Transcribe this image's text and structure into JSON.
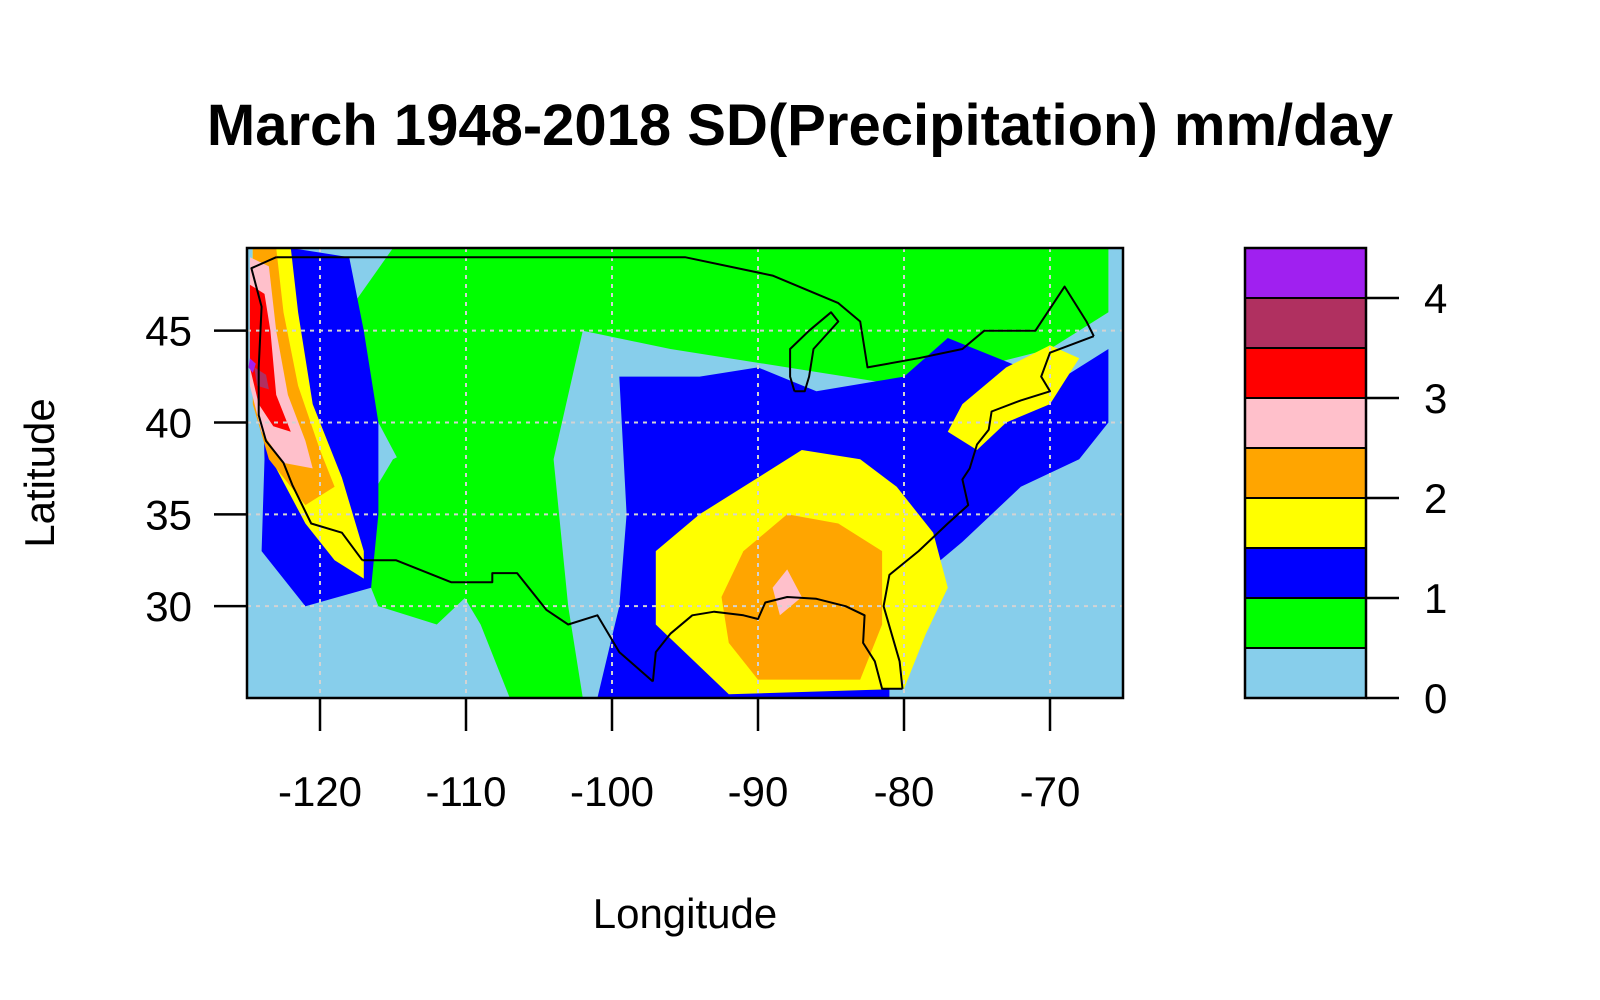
{
  "title": "March 1948-2018 SD(Precipitation) mm/day",
  "map": {
    "xlabel": "Longitude",
    "ylabel": "Latitude",
    "xlim": [
      -125,
      -65
    ],
    "ylim": [
      25,
      49.5
    ],
    "x_ticks": [
      -120,
      -110,
      -100,
      -90,
      -80,
      -70
    ],
    "y_ticks": [
      30,
      35,
      40,
      45
    ],
    "x_tick_labels": [
      "-120",
      "-110",
      "-100",
      "-90",
      "-80",
      "-70"
    ],
    "y_tick_labels": [
      "30",
      "35",
      "40",
      "45"
    ],
    "grid": true,
    "grid_color": "#d3d3d3",
    "background_color": "#87ceeb"
  },
  "legend": {
    "placement": "right",
    "breaks": [
      0,
      0.5,
      1,
      1.5,
      2,
      2.5,
      3,
      3.5,
      4,
      4.5
    ],
    "colors": [
      "#87ceeb",
      "#00ff00",
      "#0000ff",
      "#ffff00",
      "#ffa500",
      "#ffc0cb",
      "#ff0000",
      "#b03060",
      "#a020f0",
      "#000000"
    ],
    "ticks": [
      0,
      1,
      2,
      3,
      4
    ],
    "tick_labels": [
      "0",
      "1",
      "2",
      "3",
      "4"
    ]
  },
  "chart_data": {
    "type": "heatmap",
    "title": "March 1948-2018 SD(Precipitation) mm/day",
    "xlabel": "Longitude",
    "ylabel": "Latitude",
    "xlim": [
      -125,
      -65
    ],
    "ylim": [
      25,
      49.5
    ],
    "value_range": [
      0,
      4.5
    ],
    "legend_breaks": [
      0,
      0.5,
      1,
      1.5,
      2,
      2.5,
      3,
      3.5,
      4,
      4.5
    ],
    "regions": [
      {
        "name": "",
        "level": 0.5,
        "polygon": [
          [
            -102,
            49.5
          ],
          [
            -90,
            49.5
          ],
          [
            -80,
            49.5
          ],
          [
            -70,
            49.5
          ],
          [
            -66,
            49.5
          ],
          [
            -66,
            46
          ],
          [
            -70,
            44
          ],
          [
            -75,
            43
          ],
          [
            -80,
            42
          ],
          [
            -88,
            43
          ],
          [
            -96,
            44
          ],
          [
            -102,
            45
          ],
          [
            -104,
            38
          ],
          [
            -103,
            30
          ],
          [
            -102,
            25
          ],
          [
            -107,
            25
          ],
          [
            -109,
            29
          ],
          [
            -112,
            33
          ],
          [
            -114,
            37
          ],
          [
            -116,
            40
          ],
          [
            -119,
            42
          ],
          [
            -119,
            45
          ],
          [
            -115,
            49.5
          ],
          [
            -110,
            49.5
          ]
        ]
      },
      {
        "name": "",
        "level": 0.5,
        "polygon": [
          [
            -115,
            38
          ],
          [
            -110,
            40
          ],
          [
            -106,
            37
          ],
          [
            -108,
            32
          ],
          [
            -112,
            29
          ],
          [
            -116,
            30
          ],
          [
            -118,
            34
          ]
        ]
      },
      {
        "name": "",
        "level": 1,
        "polygon": [
          [
            -99.5,
            42.5
          ],
          [
            -94,
            42.5
          ],
          [
            -90,
            43
          ],
          [
            -86,
            41.7
          ],
          [
            -80,
            42.5
          ],
          [
            -77,
            44.6
          ],
          [
            -72,
            43
          ],
          [
            -70,
            42
          ],
          [
            -66,
            44
          ],
          [
            -66,
            40
          ],
          [
            -68,
            38
          ],
          [
            -72,
            36.5
          ],
          [
            -76,
            33.5
          ],
          [
            -79,
            31.5
          ],
          [
            -81,
            29
          ],
          [
            -81,
            25
          ],
          [
            -101,
            25
          ],
          [
            -99.5,
            30
          ],
          [
            -99,
            35
          ]
        ]
      },
      {
        "name": "",
        "level": 1,
        "polygon": [
          [
            -122,
            49.5
          ],
          [
            -118,
            49
          ],
          [
            -117,
            45
          ],
          [
            -116,
            40
          ],
          [
            -116,
            35
          ],
          [
            -116.5,
            31
          ],
          [
            -121,
            30
          ],
          [
            -124,
            33
          ],
          [
            -123.8,
            38
          ],
          [
            -124,
            44
          ]
        ]
      },
      {
        "name": "",
        "level": 1.5,
        "polygon": [
          [
            -94,
            35
          ],
          [
            -90,
            37
          ],
          [
            -87,
            38.5
          ],
          [
            -83,
            38
          ],
          [
            -80.5,
            36.5
          ],
          [
            -78,
            34
          ],
          [
            -77,
            31
          ],
          [
            -78.5,
            28.5
          ],
          [
            -80,
            25.5
          ],
          [
            -92,
            25.2
          ],
          [
            -97,
            29
          ],
          [
            -97,
            33
          ]
        ]
      },
      {
        "name": "",
        "level": 1.5,
        "polygon": [
          [
            -76,
            41
          ],
          [
            -73,
            43
          ],
          [
            -70,
            44.2
          ],
          [
            -68,
            43.5
          ],
          [
            -70,
            41
          ],
          [
            -73,
            40
          ],
          [
            -75,
            38.5
          ],
          [
            -77,
            39.5
          ]
        ]
      },
      {
        "name": "",
        "level": 1.5,
        "polygon": [
          [
            -124.6,
            49.5
          ],
          [
            -122,
            49.5
          ],
          [
            -121.5,
            46
          ],
          [
            -120.5,
            41
          ],
          [
            -118.5,
            37
          ],
          [
            -117,
            33
          ],
          [
            -117,
            31.5
          ],
          [
            -119,
            32.5
          ],
          [
            -121,
            34.5
          ],
          [
            -123,
            37.5
          ],
          [
            -124,
            40
          ],
          [
            -124.7,
            44
          ]
        ]
      },
      {
        "name": "",
        "level": 2,
        "polygon": [
          [
            -91,
            33
          ],
          [
            -88,
            35
          ],
          [
            -84.5,
            34.5
          ],
          [
            -81.5,
            33
          ],
          [
            -81.5,
            29
          ],
          [
            -83,
            26
          ],
          [
            -90,
            26
          ],
          [
            -92,
            28
          ],
          [
            -92.5,
            30.5
          ]
        ]
      },
      {
        "name": "",
        "level": 2,
        "polygon": [
          [
            -124.6,
            49.5
          ],
          [
            -123,
            49.5
          ],
          [
            -122.5,
            46
          ],
          [
            -121.5,
            42
          ],
          [
            -120,
            38.5
          ],
          [
            -119,
            36.5
          ],
          [
            -121,
            35.5
          ],
          [
            -123.5,
            38
          ],
          [
            -124.6,
            41
          ]
        ]
      },
      {
        "name": "",
        "level": 2.5,
        "polygon": [
          [
            -124.8,
            49
          ],
          [
            -123.5,
            48.5
          ],
          [
            -123,
            45
          ],
          [
            -122.2,
            41.5
          ],
          [
            -121,
            39
          ],
          [
            -120.5,
            37.5
          ],
          [
            -122.5,
            37.8
          ],
          [
            -124,
            39.5
          ],
          [
            -124.8,
            42
          ]
        ]
      },
      {
        "name": "",
        "level": 2.5,
        "polygon": [
          [
            -89,
            31
          ],
          [
            -88,
            32
          ],
          [
            -87,
            30.5
          ],
          [
            -88.5,
            29.5
          ]
        ]
      },
      {
        "name": "",
        "level": 3,
        "polygon": [
          [
            -124.8,
            47.5
          ],
          [
            -123.8,
            47
          ],
          [
            -123.4,
            45
          ],
          [
            -123,
            41.5
          ],
          [
            -122,
            39.5
          ],
          [
            -123.2,
            39.8
          ],
          [
            -124.2,
            41
          ],
          [
            -124.8,
            43
          ]
        ]
      },
      {
        "name": "",
        "level": 3.5,
        "polygon": [
          [
            -124.5,
            43
          ],
          [
            -123.7,
            42.6
          ],
          [
            -123.5,
            41.8
          ],
          [
            -124.3,
            42
          ]
        ]
      },
      {
        "name": "",
        "level": 4,
        "polygon": [
          [
            -124.8,
            43.5
          ],
          [
            -124.4,
            43.2
          ],
          [
            -124.6,
            42.7
          ],
          [
            -124.9,
            43
          ]
        ]
      }
    ],
    "boundaries": [
      {
        "name": "",
        "points": [
          [
            -123,
            49
          ],
          [
            -95,
            49
          ],
          [
            -89,
            48
          ],
          [
            -84.5,
            46.5
          ],
          [
            -83,
            45.5
          ],
          [
            -82.5,
            43
          ],
          [
            -79,
            43.5
          ],
          [
            -76,
            44
          ],
          [
            -74.5,
            45
          ],
          [
            -71,
            45
          ],
          [
            -69,
            47.4
          ],
          [
            -67.5,
            45.5
          ],
          [
            -67,
            44.7
          ]
        ]
      },
      {
        "name": "",
        "points": [
          [
            -67,
            44.7
          ],
          [
            -70,
            43.8
          ],
          [
            -70.6,
            42.5
          ],
          [
            -70,
            41.7
          ],
          [
            -72,
            41.2
          ],
          [
            -74,
            40.6
          ],
          [
            -74.2,
            39.6
          ],
          [
            -75,
            38.8
          ],
          [
            -75.5,
            37.5
          ],
          [
            -76,
            36.9
          ],
          [
            -75.6,
            35.5
          ],
          [
            -77,
            34.5
          ],
          [
            -79,
            33
          ],
          [
            -81,
            31.7
          ],
          [
            -81.4,
            30
          ],
          [
            -80.3,
            27
          ],
          [
            -80.1,
            25.5
          ]
        ]
      },
      {
        "name": "",
        "points": [
          [
            -80.1,
            25.5
          ],
          [
            -81.5,
            25.5
          ],
          [
            -82,
            27
          ],
          [
            -82.8,
            28
          ],
          [
            -82.7,
            29.5
          ],
          [
            -84,
            30
          ],
          [
            -86,
            30.4
          ],
          [
            -88,
            30.5
          ],
          [
            -89.5,
            30.2
          ],
          [
            -90,
            29.3
          ],
          [
            -91,
            29.5
          ],
          [
            -93,
            29.7
          ],
          [
            -94.5,
            29.5
          ],
          [
            -96,
            28.5
          ],
          [
            -97,
            27.5
          ],
          [
            -97.2,
            25.9
          ]
        ]
      },
      {
        "name": "",
        "points": [
          [
            -97.2,
            25.9
          ],
          [
            -99.5,
            27.5
          ],
          [
            -101,
            29.5
          ],
          [
            -103,
            29
          ],
          [
            -104.5,
            29.8
          ],
          [
            -106.5,
            31.8
          ],
          [
            -108.2,
            31.8
          ],
          [
            -108.2,
            31.3
          ],
          [
            -111,
            31.3
          ],
          [
            -114.8,
            32.5
          ],
          [
            -117.1,
            32.5
          ]
        ]
      },
      {
        "name": "",
        "points": [
          [
            -117.1,
            32.5
          ],
          [
            -118.5,
            34
          ],
          [
            -120.6,
            34.5
          ],
          [
            -121.9,
            36.6
          ],
          [
            -122.5,
            37.8
          ],
          [
            -123.7,
            39
          ],
          [
            -124.2,
            40.4
          ],
          [
            -124.2,
            43
          ],
          [
            -124,
            46.3
          ],
          [
            -124.7,
            48.4
          ],
          [
            -123,
            49
          ]
        ]
      },
      {
        "name": "",
        "points": [
          [
            -87.5,
            41.7
          ],
          [
            -87.8,
            42.5
          ],
          [
            -87.8,
            44
          ],
          [
            -86.5,
            45
          ],
          [
            -85,
            46
          ],
          [
            -84.5,
            45.5
          ],
          [
            -86.2,
            44
          ],
          [
            -86.5,
            42.5
          ],
          [
            -86.8,
            41.7
          ],
          [
            -87.5,
            41.7
          ]
        ]
      }
    ]
  }
}
